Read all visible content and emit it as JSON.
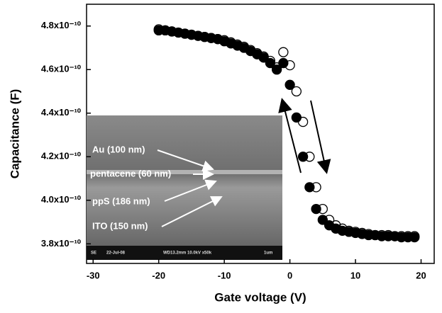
{
  "chart_data": {
    "type": "scatter",
    "x_label": "Gate voltage (V)",
    "y_label": "Capacitance (F)",
    "xlim": [
      -31,
      22
    ],
    "xticks": [
      -30,
      -20,
      -10,
      0,
      10,
      20
    ],
    "ylim": [
      3.71e-10,
      4.9e-10
    ],
    "yticks": [
      {
        "value": 3.8e-10,
        "label": "3.8x10⁻¹⁰"
      },
      {
        "value": 4e-10,
        "label": "4.0x10⁻¹⁰"
      },
      {
        "value": 4.2e-10,
        "label": "4.2x10⁻¹⁰"
      },
      {
        "value": 4.4e-10,
        "label": "4.4x10⁻¹⁰"
      },
      {
        "value": 4.6e-10,
        "label": "4.6x10⁻¹⁰"
      },
      {
        "value": 4.8e-10,
        "label": "4.8x10⁻¹⁰"
      }
    ],
    "x": [
      -20,
      -19,
      -18,
      -17,
      -16,
      -15,
      -14,
      -13,
      -12,
      -11,
      -10,
      -9,
      -8,
      -7,
      -6,
      -5,
      -4,
      -3,
      -2,
      -1,
      0,
      1,
      2,
      3,
      4,
      5,
      6,
      7,
      8,
      9,
      10,
      11,
      12,
      13,
      14,
      15,
      16,
      17,
      18,
      19
    ],
    "series": [
      {
        "marker": "open",
        "color": "#000000",
        "values": [
          4.785e-10,
          4.78e-10,
          4.775e-10,
          4.77e-10,
          4.765e-10,
          4.76e-10,
          4.755e-10,
          4.75e-10,
          4.745e-10,
          4.74e-10,
          4.735e-10,
          4.725e-10,
          4.715e-10,
          4.705e-10,
          4.69e-10,
          4.675e-10,
          4.66e-10,
          4.64e-10,
          4.61e-10,
          4.68e-10,
          4.62e-10,
          4.5e-10,
          4.36e-10,
          4.2e-10,
          4.06e-10,
          3.96e-10,
          3.91e-10,
          3.885e-10,
          3.87e-10,
          3.86e-10,
          3.855e-10,
          3.85e-10,
          3.845e-10,
          3.84e-10,
          3.84e-10,
          3.84e-10,
          3.835e-10,
          3.835e-10,
          3.835e-10,
          3.835e-10
        ]
      },
      {
        "marker": "filled",
        "color": "#000000",
        "values": [
          4.78e-10,
          4.78e-10,
          4.775e-10,
          4.77e-10,
          4.765e-10,
          4.76e-10,
          4.755e-10,
          4.75e-10,
          4.745e-10,
          4.74e-10,
          4.73e-10,
          4.72e-10,
          4.71e-10,
          4.7e-10,
          4.685e-10,
          4.67e-10,
          4.655e-10,
          4.63e-10,
          4.6e-10,
          4.63e-10,
          4.53e-10,
          4.38e-10,
          4.2e-10,
          4.06e-10,
          3.96e-10,
          3.91e-10,
          3.885e-10,
          3.87e-10,
          3.86e-10,
          3.855e-10,
          3.85e-10,
          3.845e-10,
          3.84e-10,
          3.84e-10,
          3.835e-10,
          3.835e-10,
          3.835e-10,
          3.83e-10,
          3.83e-10,
          3.83e-10
        ]
      }
    ],
    "inset": {
      "labels": [
        "Au (100 nm)",
        "pentacene (60 nm)",
        "ppS (186 nm)",
        "ITO (150 nm)"
      ],
      "info": [
        "SE",
        "22-Jul-08",
        "WD13.2mm 10.0kV x50k",
        "1um"
      ]
    }
  }
}
